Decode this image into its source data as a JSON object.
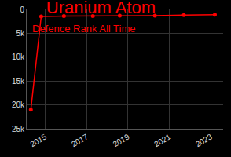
{
  "chart_data": {
    "type": "line",
    "title": "Uranium Atom",
    "subtitle": "Defence Rank All Time",
    "x": [
      2014.3,
      2014.8,
      2015.9,
      2017.3,
      2018.6,
      2020.3,
      2021.7,
      2023.2
    ],
    "values": [
      21000,
      1500,
      1400,
      1400,
      1300,
      1300,
      1200,
      1100
    ],
    "color": "#ff0000",
    "marker": "circle",
    "grid": true,
    "xlim": [
      2014.1,
      2023.6
    ],
    "xticks": [
      2015,
      2017,
      2019,
      2021,
      2023
    ],
    "ylim": [
      25000,
      0
    ],
    "yticks": [
      0,
      {
        "value": 5000,
        "label": "5k"
      },
      {
        "value": 10000,
        "label": "10k"
      },
      {
        "value": 15000,
        "label": "15k"
      },
      {
        "value": 20000,
        "label": "20k"
      },
      {
        "value": 25000,
        "label": "25k"
      }
    ]
  }
}
